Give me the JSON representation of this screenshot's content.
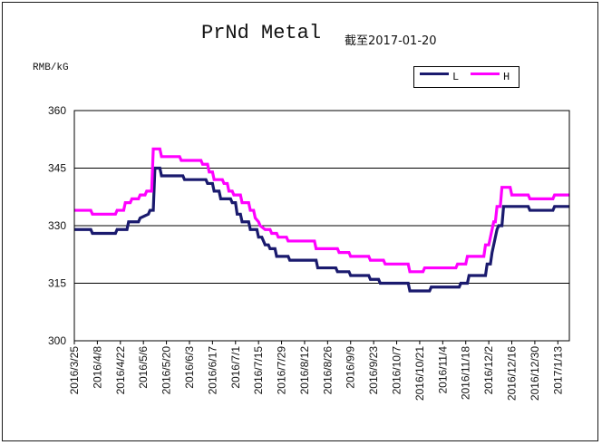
{
  "chart_data": {
    "type": "line",
    "title": "PrNd Metal",
    "subtitle": "截至2017-01-20",
    "ylabel": "RMB/kG",
    "ylim": [
      300,
      360
    ],
    "yticks": [
      "300",
      "315",
      "330",
      "345",
      "360"
    ],
    "x_tick_labels": [
      "2016/3/25",
      "2016/4/8",
      "2016/4/22",
      "2016/5/6",
      "2016/5/20",
      "2016/6/3",
      "2016/6/17",
      "2016/7/1",
      "2016/7/15",
      "2016/7/29",
      "2016/8/12",
      "2016/8/26",
      "2016/9/9",
      "2016/9/23",
      "2016/10/7",
      "2016/10/21",
      "2016/11/4",
      "2016/11/18",
      "2016/12/2",
      "2016/12/16",
      "2016/12/30",
      "2017/1/13"
    ],
    "x_range": [
      "2016-03-25",
      "2017-01-20"
    ],
    "grid": "horizontal",
    "legend_position": "top-right",
    "series": [
      {
        "name": "L",
        "color": "#1a1a6e",
        "points": [
          [
            "2016-03-25",
            329
          ],
          [
            "2016-04-04",
            329
          ],
          [
            "2016-04-05",
            328
          ],
          [
            "2016-04-19",
            328
          ],
          [
            "2016-04-20",
            329
          ],
          [
            "2016-04-26",
            329
          ],
          [
            "2016-04-27",
            331
          ],
          [
            "2016-05-03",
            331
          ],
          [
            "2016-05-04",
            332
          ],
          [
            "2016-05-09",
            333
          ],
          [
            "2016-05-10",
            334
          ],
          [
            "2016-05-12",
            334
          ],
          [
            "2016-05-13",
            345
          ],
          [
            "2016-05-16",
            345
          ],
          [
            "2016-05-17",
            343
          ],
          [
            "2016-05-30",
            343
          ],
          [
            "2016-05-31",
            342
          ],
          [
            "2016-06-13",
            342
          ],
          [
            "2016-06-14",
            341
          ],
          [
            "2016-06-17",
            341
          ],
          [
            "2016-06-18",
            339
          ],
          [
            "2016-06-21",
            339
          ],
          [
            "2016-06-22",
            337
          ],
          [
            "2016-06-28",
            337
          ],
          [
            "2016-06-29",
            336
          ],
          [
            "2016-07-01",
            336
          ],
          [
            "2016-07-02",
            333
          ],
          [
            "2016-07-04",
            333
          ],
          [
            "2016-07-05",
            331
          ],
          [
            "2016-07-09",
            331
          ],
          [
            "2016-07-10",
            329
          ],
          [
            "2016-07-14",
            329
          ],
          [
            "2016-07-15",
            327
          ],
          [
            "2016-07-17",
            327
          ],
          [
            "2016-07-18",
            326
          ],
          [
            "2016-07-19",
            325
          ],
          [
            "2016-07-21",
            325
          ],
          [
            "2016-07-22",
            324
          ],
          [
            "2016-07-25",
            324
          ],
          [
            "2016-07-26",
            322
          ],
          [
            "2016-08-02",
            322
          ],
          [
            "2016-08-03",
            321
          ],
          [
            "2016-08-19",
            321
          ],
          [
            "2016-08-20",
            319
          ],
          [
            "2016-08-31",
            319
          ],
          [
            "2016-09-01",
            318
          ],
          [
            "2016-09-08",
            318
          ],
          [
            "2016-09-09",
            317
          ],
          [
            "2016-09-20",
            317
          ],
          [
            "2016-09-21",
            316
          ],
          [
            "2016-09-26",
            316
          ],
          [
            "2016-09-27",
            315
          ],
          [
            "2016-10-14",
            315
          ],
          [
            "2016-10-15",
            313
          ],
          [
            "2016-10-27",
            313
          ],
          [
            "2016-10-28",
            314
          ],
          [
            "2016-11-14",
            314
          ],
          [
            "2016-11-15",
            315
          ],
          [
            "2016-11-19",
            315
          ],
          [
            "2016-11-20",
            317
          ],
          [
            "2016-11-30",
            317
          ],
          [
            "2016-12-01",
            320
          ],
          [
            "2016-12-03",
            320
          ],
          [
            "2016-12-04",
            323
          ],
          [
            "2016-12-05",
            325
          ],
          [
            "2016-12-06",
            327
          ],
          [
            "2016-12-07",
            329
          ],
          [
            "2016-12-08",
            330
          ],
          [
            "2016-12-10",
            330
          ],
          [
            "2016-12-11",
            335
          ],
          [
            "2016-12-26",
            335
          ],
          [
            "2016-12-27",
            334
          ],
          [
            "2017-01-10",
            334
          ],
          [
            "2017-01-11",
            335
          ],
          [
            "2017-01-20",
            335
          ]
        ]
      },
      {
        "name": "H",
        "color": "#ff00ff",
        "points": [
          [
            "2016-03-25",
            334
          ],
          [
            "2016-04-04",
            334
          ],
          [
            "2016-04-05",
            333
          ],
          [
            "2016-04-19",
            333
          ],
          [
            "2016-04-20",
            334
          ],
          [
            "2016-04-24",
            334
          ],
          [
            "2016-04-25",
            336
          ],
          [
            "2016-04-28",
            336
          ],
          [
            "2016-04-29",
            337
          ],
          [
            "2016-05-03",
            337
          ],
          [
            "2016-05-04",
            338
          ],
          [
            "2016-05-07",
            338
          ],
          [
            "2016-05-08",
            339
          ],
          [
            "2016-05-11",
            339
          ],
          [
            "2016-05-12",
            350
          ],
          [
            "2016-05-16",
            350
          ],
          [
            "2016-05-17",
            348
          ],
          [
            "2016-05-28",
            348
          ],
          [
            "2016-05-29",
            347
          ],
          [
            "2016-06-10",
            347
          ],
          [
            "2016-06-11",
            346
          ],
          [
            "2016-06-14",
            346
          ],
          [
            "2016-06-15",
            344
          ],
          [
            "2016-06-17",
            344
          ],
          [
            "2016-06-18",
            342
          ],
          [
            "2016-06-23",
            342
          ],
          [
            "2016-06-24",
            341
          ],
          [
            "2016-06-26",
            341
          ],
          [
            "2016-06-27",
            339
          ],
          [
            "2016-06-29",
            339
          ],
          [
            "2016-06-30",
            338
          ],
          [
            "2016-07-04",
            338
          ],
          [
            "2016-07-05",
            336
          ],
          [
            "2016-07-09",
            336
          ],
          [
            "2016-07-10",
            334
          ],
          [
            "2016-07-12",
            334
          ],
          [
            "2016-07-13",
            332
          ],
          [
            "2016-07-15",
            331
          ],
          [
            "2016-07-16",
            330
          ],
          [
            "2016-07-19",
            329
          ],
          [
            "2016-07-22",
            329
          ],
          [
            "2016-07-23",
            328
          ],
          [
            "2016-07-26",
            328
          ],
          [
            "2016-07-27",
            327
          ],
          [
            "2016-08-01",
            327
          ],
          [
            "2016-08-02",
            326
          ],
          [
            "2016-08-18",
            326
          ],
          [
            "2016-08-19",
            324
          ],
          [
            "2016-09-01",
            324
          ],
          [
            "2016-09-02",
            323
          ],
          [
            "2016-09-08",
            323
          ],
          [
            "2016-09-09",
            322
          ],
          [
            "2016-09-20",
            322
          ],
          [
            "2016-09-21",
            321
          ],
          [
            "2016-09-29",
            321
          ],
          [
            "2016-09-30",
            320
          ],
          [
            "2016-10-14",
            320
          ],
          [
            "2016-10-15",
            318
          ],
          [
            "2016-10-23",
            318
          ],
          [
            "2016-10-24",
            319
          ],
          [
            "2016-11-12",
            319
          ],
          [
            "2016-11-13",
            320
          ],
          [
            "2016-11-18",
            320
          ],
          [
            "2016-11-19",
            322
          ],
          [
            "2016-11-29",
            322
          ],
          [
            "2016-11-30",
            325
          ],
          [
            "2016-12-02",
            325
          ],
          [
            "2016-12-03",
            327
          ],
          [
            "2016-12-04",
            329
          ],
          [
            "2016-12-05",
            331
          ],
          [
            "2016-12-06",
            331
          ],
          [
            "2016-12-07",
            335
          ],
          [
            "2016-12-09",
            335
          ],
          [
            "2016-12-10",
            340
          ],
          [
            "2016-12-15",
            340
          ],
          [
            "2016-12-16",
            338
          ],
          [
            "2016-12-26",
            338
          ],
          [
            "2016-12-27",
            337
          ],
          [
            "2017-01-10",
            337
          ],
          [
            "2017-01-11",
            338
          ],
          [
            "2017-01-20",
            338
          ]
        ]
      }
    ]
  }
}
